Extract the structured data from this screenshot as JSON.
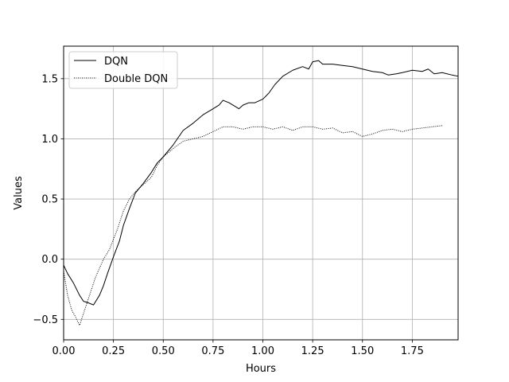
{
  "chart_data": {
    "type": "line",
    "xlabel": "Hours",
    "ylabel": "Values",
    "xlim": [
      0.0,
      1.98
    ],
    "ylim": [
      -0.67,
      1.77
    ],
    "xticks": [
      "0.00",
      "0.25",
      "0.50",
      "0.75",
      "1.00",
      "1.25",
      "1.50",
      "1.75"
    ],
    "xtick_values": [
      0.0,
      0.25,
      0.5,
      0.75,
      1.0,
      1.25,
      1.5,
      1.75
    ],
    "yticks": [
      "−0.5",
      "0.0",
      "0.5",
      "1.0",
      "1.5"
    ],
    "ytick_values": [
      -0.5,
      0.0,
      0.5,
      1.0,
      1.5
    ],
    "grid": true,
    "legend_position": "top-left",
    "series": [
      {
        "name": "DQN",
        "style": "solid",
        "color": "#000000",
        "x": [
          0.0,
          0.02,
          0.05,
          0.08,
          0.1,
          0.12,
          0.15,
          0.18,
          0.2,
          0.22,
          0.25,
          0.28,
          0.3,
          0.33,
          0.36,
          0.4,
          0.44,
          0.47,
          0.5,
          0.55,
          0.6,
          0.65,
          0.7,
          0.75,
          0.78,
          0.8,
          0.83,
          0.86,
          0.88,
          0.9,
          0.93,
          0.96,
          1.0,
          1.03,
          1.06,
          1.1,
          1.15,
          1.2,
          1.23,
          1.25,
          1.28,
          1.3,
          1.35,
          1.4,
          1.45,
          1.5,
          1.55,
          1.6,
          1.63,
          1.67,
          1.7,
          1.75,
          1.8,
          1.83,
          1.86,
          1.9,
          1.95,
          1.98
        ],
        "y": [
          -0.05,
          -0.12,
          -0.2,
          -0.3,
          -0.35,
          -0.36,
          -0.38,
          -0.3,
          -0.22,
          -0.12,
          0.02,
          0.15,
          0.28,
          0.42,
          0.55,
          0.63,
          0.72,
          0.8,
          0.85,
          0.95,
          1.07,
          1.13,
          1.2,
          1.25,
          1.28,
          1.32,
          1.3,
          1.27,
          1.25,
          1.28,
          1.3,
          1.3,
          1.33,
          1.38,
          1.45,
          1.52,
          1.57,
          1.6,
          1.58,
          1.64,
          1.65,
          1.62,
          1.62,
          1.61,
          1.6,
          1.58,
          1.56,
          1.55,
          1.53,
          1.54,
          1.55,
          1.57,
          1.56,
          1.58,
          1.54,
          1.55,
          1.53,
          1.52
        ]
      },
      {
        "name": "Double DQN",
        "style": "dotted",
        "color": "#000000",
        "x": [
          0.0,
          0.02,
          0.04,
          0.06,
          0.08,
          0.1,
          0.13,
          0.16,
          0.2,
          0.23,
          0.27,
          0.3,
          0.33,
          0.36,
          0.4,
          0.44,
          0.47,
          0.5,
          0.55,
          0.6,
          0.65,
          0.7,
          0.75,
          0.8,
          0.85,
          0.9,
          0.95,
          1.0,
          1.05,
          1.1,
          1.15,
          1.2,
          1.25,
          1.3,
          1.35,
          1.4,
          1.45,
          1.5,
          1.55,
          1.6,
          1.65,
          1.7,
          1.75,
          1.8,
          1.85,
          1.9
        ],
        "y": [
          -0.1,
          -0.3,
          -0.42,
          -0.48,
          -0.55,
          -0.45,
          -0.3,
          -0.15,
          0.0,
          0.08,
          0.25,
          0.4,
          0.5,
          0.56,
          0.62,
          0.68,
          0.78,
          0.85,
          0.92,
          0.98,
          1.0,
          1.02,
          1.06,
          1.1,
          1.1,
          1.08,
          1.1,
          1.1,
          1.08,
          1.1,
          1.07,
          1.1,
          1.1,
          1.08,
          1.09,
          1.05,
          1.06,
          1.02,
          1.04,
          1.07,
          1.08,
          1.06,
          1.08,
          1.09,
          1.1,
          1.11
        ]
      }
    ]
  }
}
